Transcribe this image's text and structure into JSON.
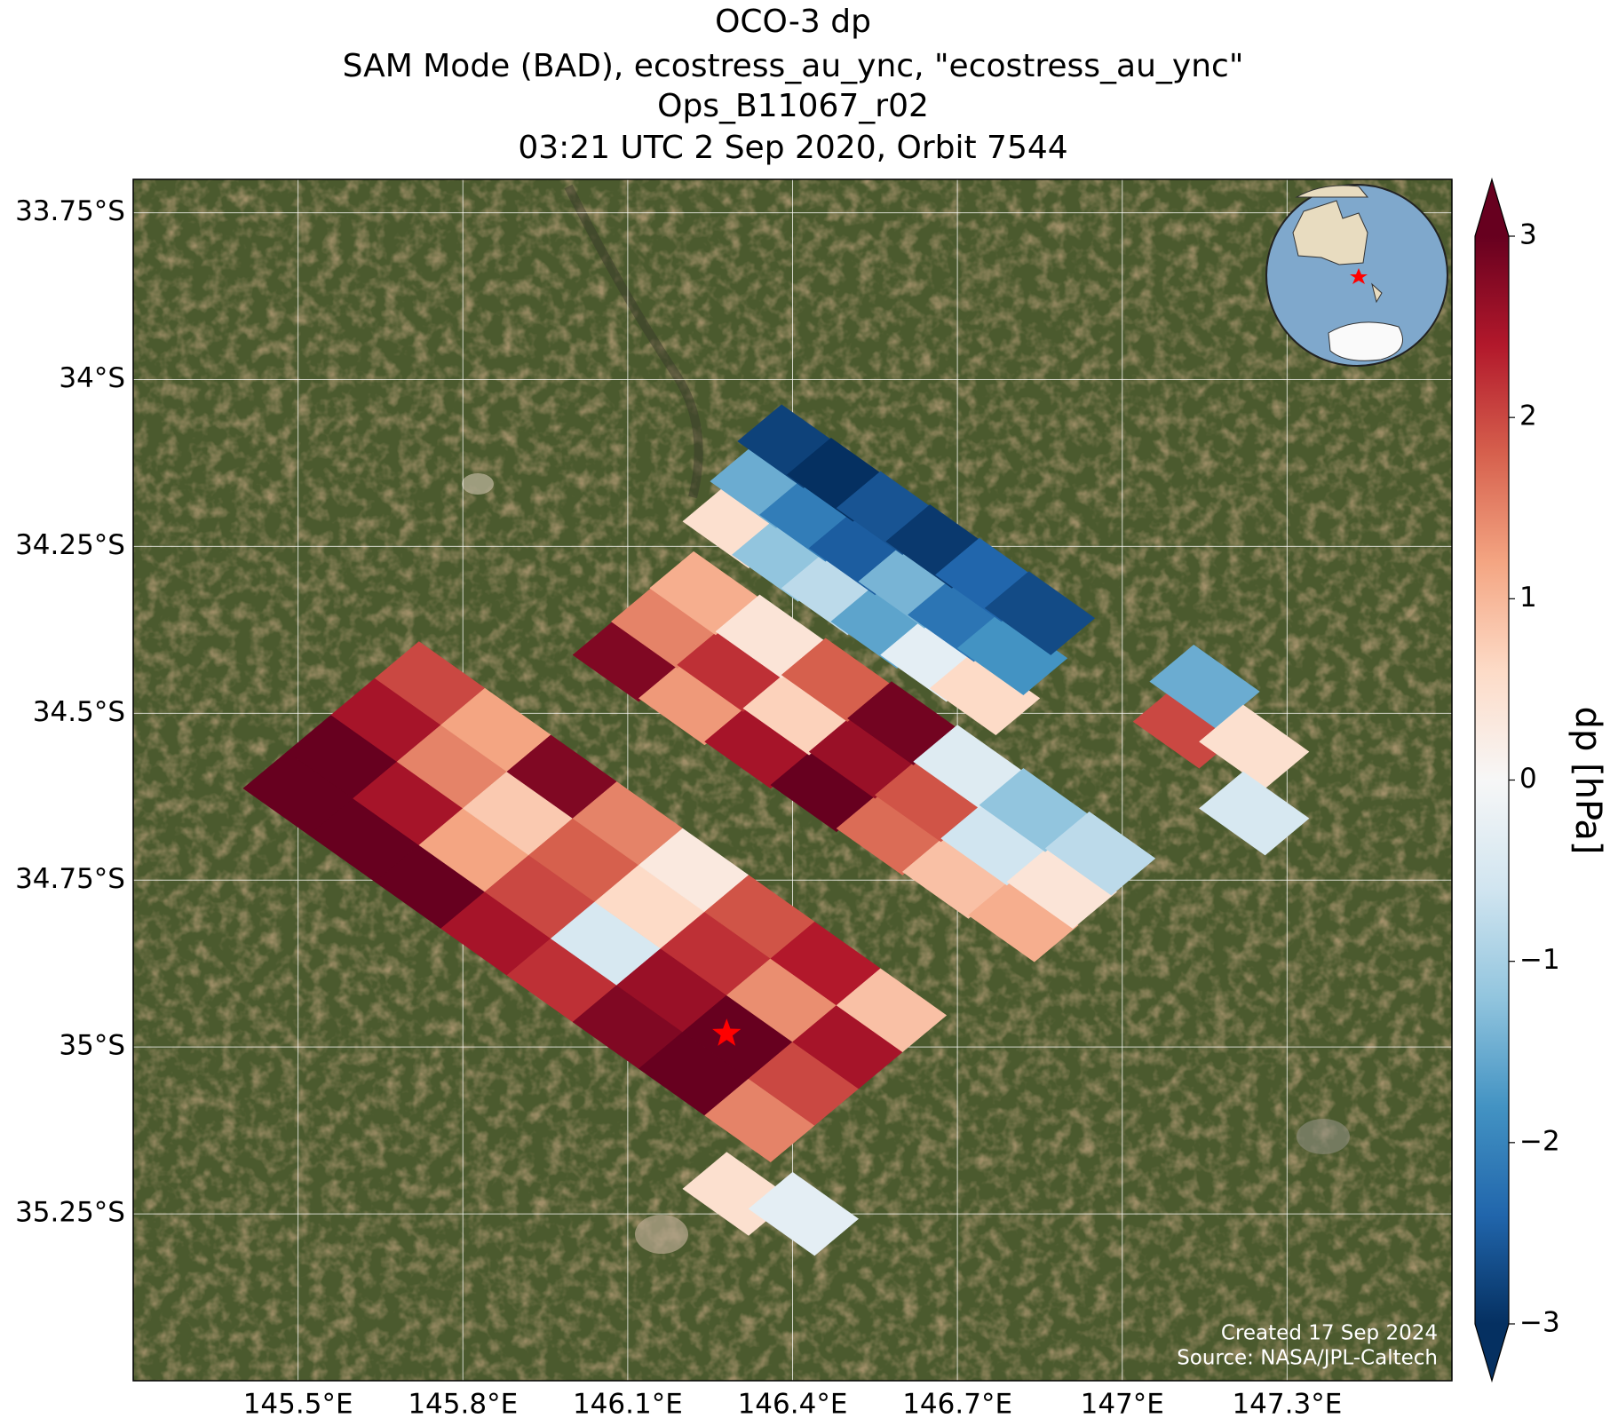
{
  "chart_data": {
    "type": "map",
    "title": [
      "OCO-3 dp",
      "SAM Mode (BAD), ecostress_au_ync, \"ecostress_au_ync\"",
      "Ops_B11067_r02",
      "03:21 UTC 2 Sep 2020, Orbit 7544"
    ],
    "xlim": [
      145.2,
      147.6
    ],
    "ylim": [
      -33.7,
      -35.5
    ],
    "xticks": [
      {
        "value": 145.5,
        "label": "145.5°E"
      },
      {
        "value": 145.8,
        "label": "145.8°E"
      },
      {
        "value": 146.1,
        "label": "146.1°E"
      },
      {
        "value": 146.4,
        "label": "146.4°E"
      },
      {
        "value": 146.7,
        "label": "146.7°E"
      },
      {
        "value": 147,
        "label": "147°E"
      },
      {
        "value": 147.3,
        "label": "147.3°E"
      }
    ],
    "yticks": [
      {
        "value": -33.75,
        "label": "33.75°S"
      },
      {
        "value": -34,
        "label": "34°S"
      },
      {
        "value": -34.25,
        "label": "34.25°S"
      },
      {
        "value": -34.5,
        "label": "34.5°S"
      },
      {
        "value": -34.75,
        "label": "34.75°S"
      },
      {
        "value": -35,
        "label": "35°S"
      },
      {
        "value": -35.25,
        "label": "35.25°S"
      }
    ],
    "grid": true,
    "colorbar_label": "dp [hPa]",
    "clim": [
      -3,
      3
    ],
    "colors": [
      "#053061",
      "#2166ac",
      "#4393c3",
      "#92c5de",
      "#d1e5f0",
      "#f7f7f7",
      "#fddbc7",
      "#f4a582",
      "#d6604d",
      "#b2182b",
      "#67001f"
    ],
    "cticks": [
      {
        "value": -3,
        "label": "−3"
      },
      {
        "value": -2,
        "label": "−2"
      },
      {
        "value": -1,
        "label": "−1"
      },
      0,
      1,
      2,
      3
    ],
    "target": {
      "lon": 146.28,
      "lat": -34.98,
      "color": "#ff0000"
    },
    "footer": [
      "Created 17 Sep 2024",
      "Source: NASA/JPL-Caltech"
    ],
    "swaths": [
      {
        "lon": [
          145.5,
          145.62,
          145.74,
          145.86,
          145.98,
          146.1,
          146.22,
          146.34
        ],
        "lat": [
          -34.62,
          -34.69,
          -34.76,
          -34.83,
          -34.9,
          -34.97,
          -35.04,
          -35.11
        ],
        "values": [
          3,
          3,
          3,
          2.5,
          2.2,
          2.8,
          3,
          1.5
        ]
      },
      {
        "lon": [
          145.58,
          145.7,
          145.82,
          145.94,
          146.06,
          146.18,
          146.3,
          146.42
        ],
        "lat": [
          -34.565,
          -34.635,
          -34.705,
          -34.775,
          -34.845,
          -34.915,
          -34.985,
          -35.055
        ],
        "values": [
          3,
          2.5,
          1.2,
          2,
          -0.5,
          2.6,
          3,
          2
        ]
      },
      {
        "lon": [
          145.66,
          145.78,
          145.9,
          146.02,
          146.14,
          146.26,
          146.38,
          146.5
        ],
        "lat": [
          -34.51,
          -34.58,
          -34.65,
          -34.72,
          -34.79,
          -34.86,
          -34.93,
          -35.0
        ],
        "values": [
          2.5,
          1.5,
          0.8,
          1.8,
          0.6,
          2.2,
          1.4,
          2.5
        ]
      },
      {
        "lon": [
          145.74,
          145.86,
          145.98,
          146.1,
          146.22,
          146.34,
          146.46,
          146.58
        ],
        "lat": [
          -34.455,
          -34.525,
          -34.595,
          -34.665,
          -34.735,
          -34.805,
          -34.875,
          -34.945
        ],
        "values": [
          2,
          1.2,
          2.8,
          1.5,
          0.3,
          1.9,
          2.4,
          0.9
        ]
      },
      {
        "lon": [
          146.3,
          146.42
        ],
        "lat": [
          -35.22,
          -35.25
        ],
        "values": [
          0.5,
          -0.3
        ]
      },
      {
        "lon": [
          146.1,
          146.22,
          146.34,
          146.46,
          146.58,
          146.7,
          146.82
        ],
        "lat": [
          -34.42,
          -34.485,
          -34.55,
          -34.615,
          -34.68,
          -34.745,
          -34.81
        ],
        "values": [
          2.8,
          1.3,
          2.5,
          3,
          1.7,
          0.9,
          1.1
        ]
      },
      {
        "lon": [
          146.17,
          146.29,
          146.41,
          146.53,
          146.65,
          146.77,
          146.89
        ],
        "lat": [
          -34.37,
          -34.435,
          -34.5,
          -34.565,
          -34.63,
          -34.695,
          -34.76
        ],
        "values": [
          1.5,
          2.2,
          0.7,
          2.6,
          1.9,
          -0.6,
          0.4
        ]
      },
      {
        "lon": [
          146.24,
          146.36,
          146.48,
          146.6,
          146.72,
          146.84,
          146.96
        ],
        "lat": [
          -34.32,
          -34.385,
          -34.45,
          -34.515,
          -34.58,
          -34.645,
          -34.71
        ],
        "values": [
          1.1,
          0.4,
          1.8,
          2.9,
          -0.4,
          -1.2,
          -0.8
        ]
      },
      {
        "lon": [
          146.3,
          146.39,
          146.48,
          146.57,
          146.66,
          146.75
        ],
        "lat": [
          -34.22,
          -34.27,
          -34.32,
          -34.37,
          -34.42,
          -34.47
        ],
        "values": [
          0.5,
          -1.2,
          -0.8,
          -1.6,
          -0.3,
          0.6
        ]
      },
      {
        "lon": [
          146.35,
          146.44,
          146.53,
          146.62,
          146.71,
          146.8
        ],
        "lat": [
          -34.16,
          -34.21,
          -34.26,
          -34.31,
          -34.36,
          -34.41
        ],
        "values": [
          -1.5,
          -2.1,
          -2.5,
          -1.4,
          -2.2,
          -1.8
        ]
      },
      {
        "lon": [
          146.4,
          146.49,
          146.58,
          146.67,
          146.76,
          146.85
        ],
        "lat": [
          -34.1,
          -34.15,
          -34.2,
          -34.25,
          -34.3,
          -34.35
        ],
        "values": [
          -2.8,
          -3,
          -2.6,
          -2.9,
          -2.4,
          -2.7
        ]
      },
      {
        "lon": [
          147.12,
          147.15,
          147.24,
          147.24
        ],
        "lat": [
          -34.52,
          -34.46,
          -34.55,
          -34.65
        ],
        "values": [
          2,
          -1.5,
          0.5,
          -0.5
        ]
      }
    ]
  }
}
